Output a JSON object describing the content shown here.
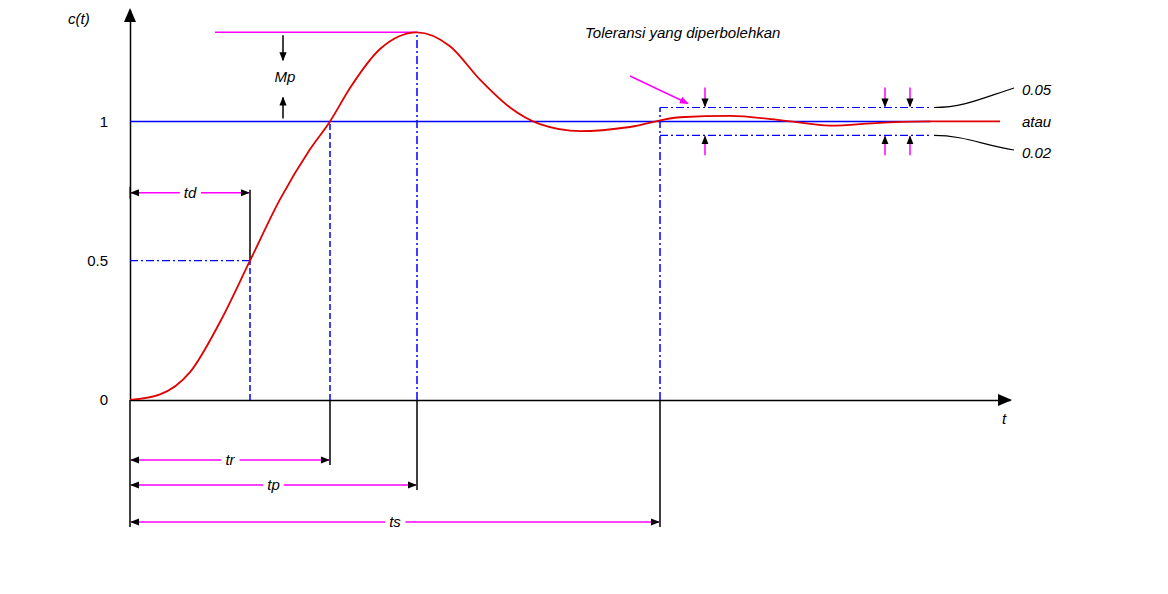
{
  "chart_data": {
    "type": "line",
    "x_label": "t",
    "y_label": "c(t)",
    "x": [
      0,
      0.3,
      0.6,
      0.9,
      1.2,
      1.5,
      1.8,
      2.0,
      2.2,
      2.5,
      2.87,
      3.2,
      3.5,
      3.8,
      4.1,
      4.5,
      5.0,
      5.5,
      6.0,
      6.5,
      7.0,
      7.5,
      8.0,
      8.7
    ],
    "series": [
      {
        "color": "#e00000",
        "values": [
          0,
          0.02,
          0.1,
          0.28,
          0.5,
          0.72,
          0.9,
          1.0,
          1.12,
          1.26,
          1.32,
          1.27,
          1.15,
          1.05,
          0.99,
          0.965,
          0.98,
          1.015,
          1.02,
          1.005,
          0.985,
          0.995,
          1.0,
          1.0
        ]
      }
    ],
    "xlim": [
      0,
      8.8
    ],
    "ylim": [
      0,
      1.4
    ],
    "yticks": [
      0,
      0.5,
      1
    ],
    "tick_labels": "y",
    "final_value": 1,
    "markers": {
      "td": {
        "label": "td",
        "x": 1.2,
        "y": 0.5
      },
      "tr": {
        "label": "tr",
        "x": 2.0,
        "y": 1
      },
      "tp": {
        "label": "tp",
        "x": 2.87,
        "y": 1.32
      },
      "ts": {
        "label": "ts",
        "x": 5.3,
        "y": 0.975
      }
    },
    "overshoot": {
      "label": "Mp",
      "from": 1,
      "to": 1.32
    },
    "tolerance": {
      "label": "Toleransi yang diperbolehkan",
      "values": [
        0.05,
        0.02
      ],
      "separator": "atau",
      "x": [
        5.3,
        8.0
      ]
    }
  }
}
